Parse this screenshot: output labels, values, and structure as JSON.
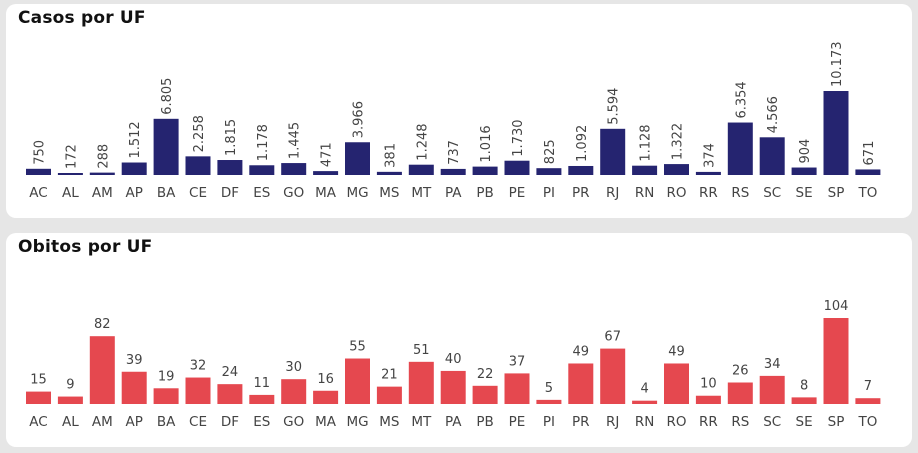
{
  "colors": {
    "cases_bar": "#252470",
    "deaths_bar": "#e5484f",
    "label": "#444444"
  },
  "chart_data": [
    {
      "id": "cases",
      "type": "bar",
      "title": "Casos por UF",
      "categories": [
        "AC",
        "AL",
        "AM",
        "AP",
        "BA",
        "CE",
        "DF",
        "ES",
        "GO",
        "MA",
        "MG",
        "MS",
        "MT",
        "PA",
        "PB",
        "PE",
        "PI",
        "PR",
        "RJ",
        "RN",
        "RO",
        "RR",
        "RS",
        "SC",
        "SE",
        "SP",
        "TO"
      ],
      "values": [
        750,
        172,
        288,
        1512,
        6805,
        2258,
        1815,
        1178,
        1445,
        471,
        3966,
        381,
        1248,
        737,
        1016,
        1730,
        825,
        1092,
        5594,
        1128,
        1322,
        374,
        6354,
        4566,
        904,
        10173,
        671
      ],
      "value_labels": [
        "750",
        "172",
        "288",
        "1.512",
        "6.805",
        "2.258",
        "1.815",
        "1.178",
        "1.445",
        "471",
        "3.966",
        "381",
        "1.248",
        "737",
        "1.016",
        "1.730",
        "825",
        "1.092",
        "5.594",
        "1.128",
        "1.322",
        "374",
        "6.354",
        "4.566",
        "904",
        "10.173",
        "671"
      ],
      "label_orientation": "vertical",
      "color": "#252470"
    },
    {
      "id": "deaths",
      "type": "bar",
      "title": "Obitos por UF",
      "categories": [
        "AC",
        "AL",
        "AM",
        "AP",
        "BA",
        "CE",
        "DF",
        "ES",
        "GO",
        "MA",
        "MG",
        "MS",
        "MT",
        "PA",
        "PB",
        "PE",
        "PI",
        "PR",
        "RJ",
        "RN",
        "RO",
        "RR",
        "RS",
        "SC",
        "SE",
        "SP",
        "TO"
      ],
      "values": [
        15,
        9,
        82,
        39,
        19,
        32,
        24,
        11,
        30,
        16,
        55,
        21,
        51,
        40,
        22,
        37,
        5,
        49,
        67,
        4,
        49,
        10,
        26,
        34,
        8,
        104,
        7
      ],
      "value_labels": [
        "15",
        "9",
        "82",
        "39",
        "19",
        "32",
        "24",
        "11",
        "30",
        "16",
        "55",
        "21",
        "51",
        "40",
        "22",
        "37",
        "5",
        "49",
        "67",
        "4",
        "49",
        "10",
        "26",
        "34",
        "8",
        "104",
        "7"
      ],
      "label_orientation": "horizontal",
      "color": "#e5484f"
    }
  ]
}
